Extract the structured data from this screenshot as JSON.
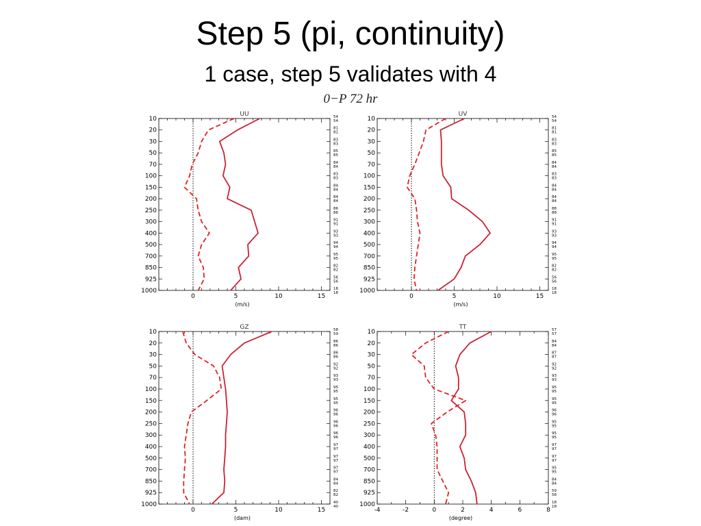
{
  "slide": {
    "title": "Step 5 (pi, continuity)",
    "subtitle": "1 case, step 5 validates with 4",
    "run_label": "0−P  72  hr"
  },
  "colors": {
    "solid": "#e02020",
    "dashed": "#e02020",
    "overlay": "#5a2a9c",
    "zero_line": "#000000"
  },
  "chart_data": [
    {
      "type": "line",
      "title": "UU",
      "xlabel": "(m/s)",
      "ylabel": "",
      "xlim": [
        -4,
        16
      ],
      "xticks": [
        0,
        5,
        10,
        15
      ],
      "y_levels": [
        "10",
        "20",
        "30",
        "50",
        "70",
        "100",
        "150",
        "200",
        "250",
        "300",
        "400",
        "500",
        "700",
        "850",
        "925",
        "1000"
      ],
      "counts": [
        [
          "54",
          "54"
        ],
        [
          "81",
          "81"
        ],
        [
          "83",
          "83"
        ],
        [
          "85",
          "85"
        ],
        [
          "84",
          "84"
        ],
        [
          "83",
          "83"
        ],
        [
          "84",
          "84"
        ],
        [
          "84",
          "84"
        ],
        [
          "86",
          "86"
        ],
        [
          "91",
          "91"
        ],
        [
          "93",
          "93"
        ],
        [
          "94",
          "94"
        ],
        [
          "95",
          "95"
        ],
        [
          "82",
          "82"
        ],
        [
          "56",
          "56"
        ],
        [
          "18",
          "18"
        ]
      ],
      "series": [
        {
          "style": "solid",
          "values": [
            7.8,
            5.2,
            3.1,
            3.6,
            3.8,
            3.5,
            4.3,
            4.0,
            6.8,
            7.2,
            7.6,
            6.4,
            6.5,
            5.3,
            5.6,
            4.4
          ]
        },
        {
          "style": "dashed",
          "values": [
            4.8,
            1.8,
            1.0,
            0.6,
            -0.1,
            -0.4,
            -1.0,
            0.4,
            0.6,
            1.0,
            1.9,
            1.0,
            0.6,
            1.2,
            1.3,
            0.6
          ]
        }
      ]
    },
    {
      "type": "line",
      "title": "UV",
      "xlabel": "(m/s)",
      "ylabel": "",
      "xlim": [
        -4,
        16
      ],
      "xticks": [
        0,
        5,
        10,
        15
      ],
      "y_levels": [
        "10",
        "20",
        "30",
        "50",
        "70",
        "100",
        "150",
        "200",
        "250",
        "300",
        "400",
        "500",
        "700",
        "850",
        "925",
        "1000"
      ],
      "counts": [
        [
          "54",
          "54"
        ],
        [
          "81",
          "81"
        ],
        [
          "83",
          "83"
        ],
        [
          "85",
          "85"
        ],
        [
          "84",
          "84"
        ],
        [
          "83",
          "83"
        ],
        [
          "84",
          "84"
        ],
        [
          "84",
          "84"
        ],
        [
          "88",
          "88"
        ],
        [
          "91",
          "91"
        ],
        [
          "93",
          "93"
        ],
        [
          "94",
          "94"
        ],
        [
          "95",
          "95"
        ],
        [
          "82",
          "82"
        ],
        [
          "56",
          "56"
        ],
        [
          "18",
          "18"
        ]
      ],
      "series": [
        {
          "style": "solid",
          "values": [
            6.2,
            3.4,
            3.5,
            3.5,
            3.5,
            3.7,
            4.6,
            4.7,
            6.7,
            8.3,
            9.2,
            8.0,
            6.3,
            5.8,
            5.0,
            3.1
          ]
        },
        {
          "style": "dashed",
          "values": [
            4.0,
            1.7,
            1.4,
            0.9,
            0.4,
            -0.2,
            -0.5,
            0.4,
            0.6,
            0.7,
            1.0,
            0.8,
            0.6,
            0.4,
            0.3,
            0.6
          ]
        }
      ]
    },
    {
      "type": "line",
      "title": "GZ",
      "xlabel": "(dam)",
      "ylabel": "",
      "xlim": [
        -4,
        16
      ],
      "xticks": [
        0,
        5,
        10,
        15
      ],
      "y_levels": [
        "10",
        "20",
        "30",
        "50",
        "70",
        "100",
        "150",
        "200",
        "250",
        "300",
        "400",
        "500",
        "700",
        "850",
        "925",
        "1000"
      ],
      "counts": [
        [
          "58",
          "59"
        ],
        [
          "86",
          "86"
        ],
        [
          "86",
          "86"
        ],
        [
          "92",
          "92"
        ],
        [
          "93",
          "93"
        ],
        [
          "95",
          "95"
        ],
        [
          "95",
          "95"
        ],
        [
          "96",
          "96"
        ],
        [
          "96",
          "96"
        ],
        [
          "96",
          "96"
        ],
        [
          "97",
          "97"
        ],
        [
          "97",
          "97"
        ],
        [
          "97",
          "97"
        ],
        [
          "84",
          "84"
        ],
        [
          "82",
          "82"
        ],
        [
          "40",
          "40"
        ]
      ],
      "series": [
        {
          "style": "solid",
          "values": [
            9.2,
            6.0,
            4.4,
            3.4,
            3.6,
            3.8,
            3.9,
            4.0,
            3.9,
            3.8,
            3.8,
            3.7,
            3.6,
            3.7,
            3.6,
            2.2
          ]
        },
        {
          "style": "dashed",
          "values": [
            -1.2,
            -0.8,
            0.2,
            2.4,
            3.1,
            3.3,
            1.6,
            -0.2,
            -0.6,
            -0.8,
            -1.0,
            -0.9,
            -1.0,
            -1.1,
            -1.1,
            -0.4
          ]
        }
      ]
    },
    {
      "type": "line",
      "title": "TT",
      "xlabel": "(degree)",
      "ylabel": "",
      "xlim": [
        -4,
        8
      ],
      "xticks": [
        -4,
        -2,
        0,
        2,
        4,
        6,
        8
      ],
      "y_levels": [
        "10",
        "20",
        "30",
        "50",
        "70",
        "100",
        "150",
        "200",
        "250",
        "300",
        "400",
        "500",
        "700",
        "850",
        "925",
        "1000"
      ],
      "counts": [
        [
          "57",
          "57"
        ],
        [
          "84",
          "84"
        ],
        [
          "87",
          "87"
        ],
        [
          "92",
          "92"
        ],
        [
          "93",
          "93"
        ],
        [
          "95",
          "95"
        ],
        [
          "95",
          "95"
        ],
        [
          "96",
          "96"
        ],
        [
          "95",
          "95"
        ],
        [
          "95",
          "95"
        ],
        [
          "97",
          "97"
        ],
        [
          "97",
          "97"
        ],
        [
          "95",
          "95"
        ],
        [
          "84",
          "84"
        ],
        [
          "59",
          "58"
        ],
        [
          "18",
          "18"
        ]
      ],
      "series": [
        {
          "style": "solid",
          "values": [
            4.0,
            2.5,
            1.8,
            1.5,
            1.7,
            1.7,
            1.2,
            2.1,
            2.2,
            2.2,
            1.8,
            2.1,
            2.2,
            2.6,
            2.9,
            3.0
          ]
        },
        {
          "style": "dashed",
          "values": [
            1.0,
            -0.6,
            -1.6,
            -0.7,
            -0.6,
            0.0,
            2.2,
            0.9,
            -0.2,
            0.1,
            0.2,
            0.2,
            0.2,
            0.6,
            1.0,
            0.8
          ]
        }
      ]
    }
  ]
}
